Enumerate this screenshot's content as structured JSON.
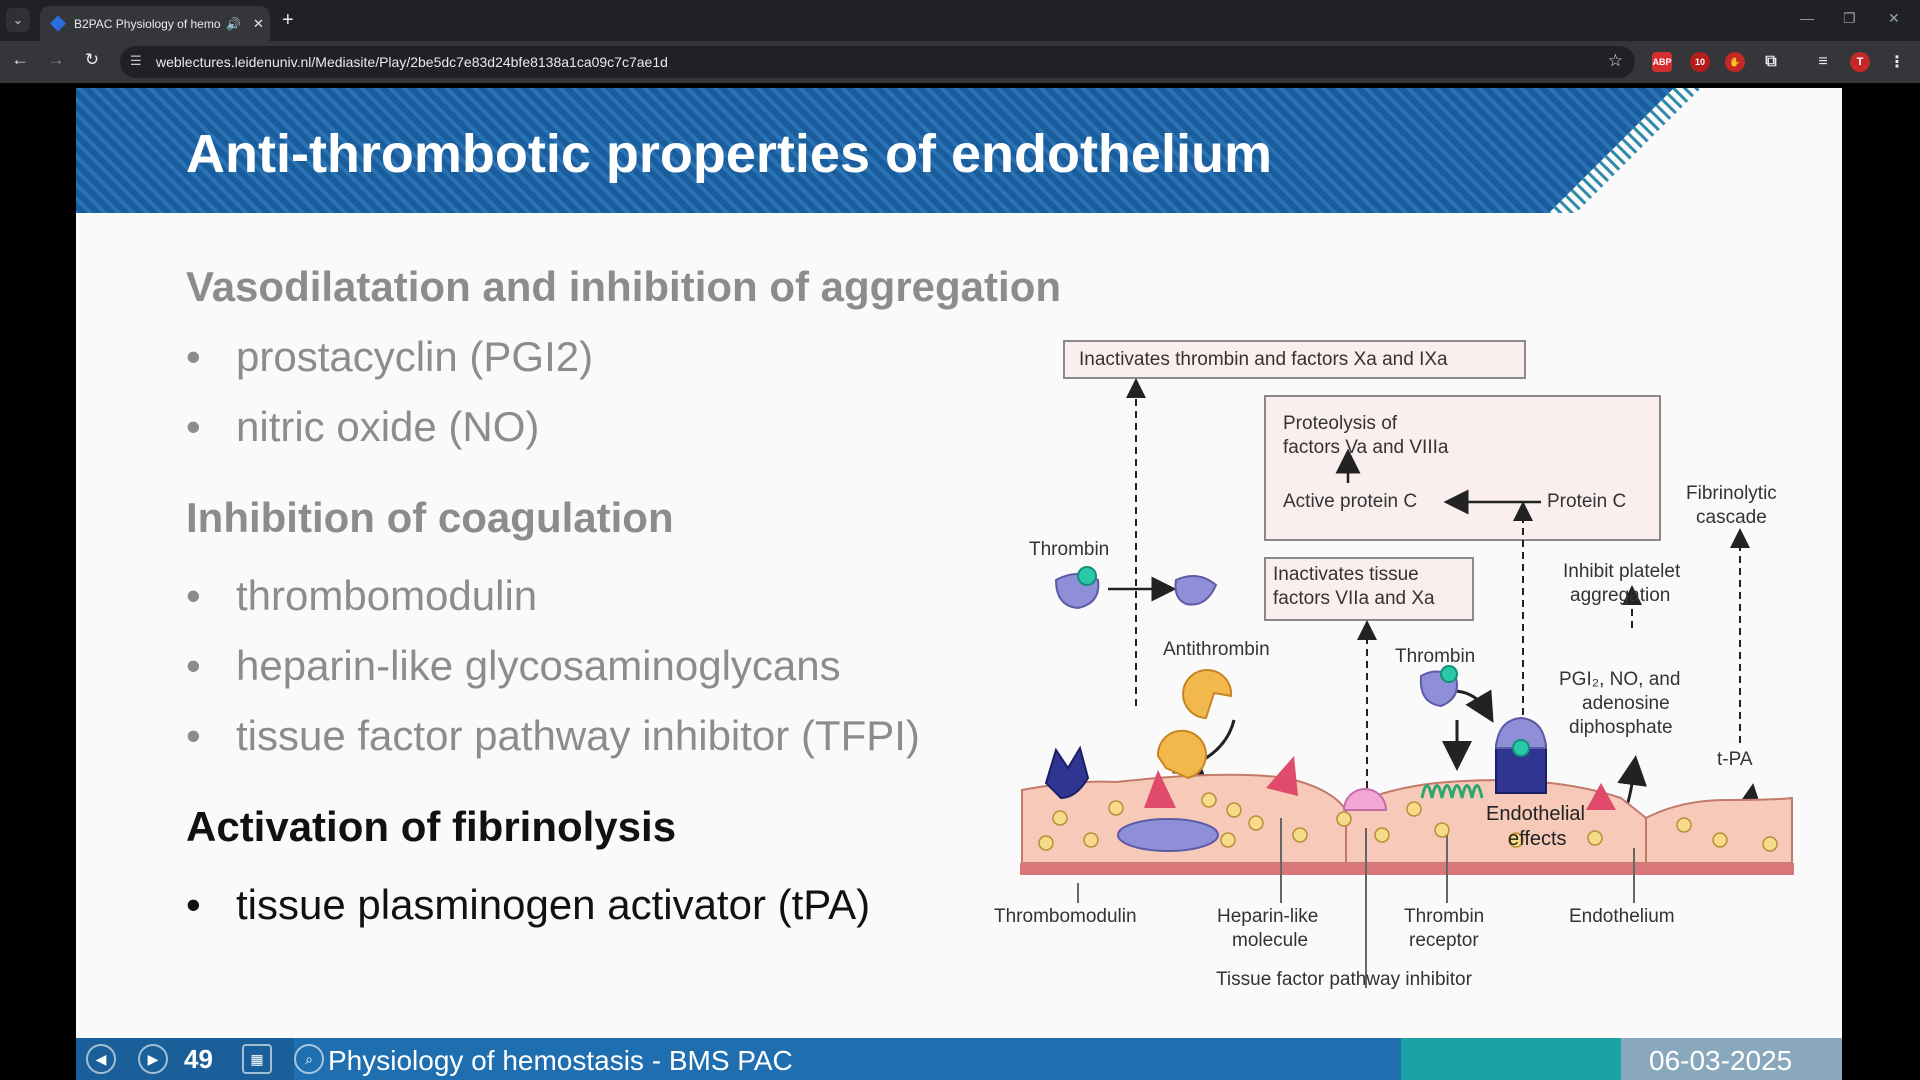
{
  "browser": {
    "tab_title": "B2PAC Physiology of hemo",
    "url": "weblectures.leidenuniv.nl/Mediasite/Play/2be5dc7e83d24bfe8138a1ca09c7c7ae1d",
    "ext_abp": "ABP",
    "ext_badge": "10",
    "profile_initial": "T"
  },
  "slide": {
    "title": "Anti-thrombotic properties of endothelium",
    "sections": [
      {
        "heading": "Vasodilatation and inhibition of aggregation",
        "items": [
          "prostacyclin (PGI2)",
          "nitric oxide (NO)"
        ]
      },
      {
        "heading": "Inhibition of coagulation",
        "items": [
          "thrombomodulin",
          "heparin-like glycosaminoglycans",
          "tissue factor pathway inhibitor (TFPI)"
        ]
      },
      {
        "heading": "Activation of fibrinolysis",
        "items": [
          "tissue plasminogen activator (tPA)"
        ]
      }
    ],
    "bullet_char": "•"
  },
  "diagram": {
    "box_top": "Inactivates thrombin and factors Xa and IXa",
    "box_proteolysis_l1": "Proteolysis of",
    "box_proteolysis_l2": "factors Va and VIIIa",
    "active_protein_c": "Active protein C",
    "protein_c": "Protein C",
    "fibrinolytic_l1": "Fibrinolytic",
    "fibrinolytic_l2": "cascade",
    "thrombin_left": "Thrombin",
    "box_tissue_l1": "Inactivates tissue",
    "box_tissue_l2": "factors VIIa and Xa",
    "inhibit_l1": "Inhibit platelet",
    "inhibit_l2": "aggregation",
    "antithrombin": "Antithrombin",
    "thrombin_right": "Thrombin",
    "pgi_l1": "PGI₂, NO, and",
    "pgi_l2": "adenosine",
    "pgi_l3": "diphosphate",
    "tpa": "t-PA",
    "endo_effects_l1": "Endothelial",
    "endo_effects_l2": "effects",
    "thrombomodulin": "Thrombomodulin",
    "heparin_l1": "Heparin-like",
    "heparin_l2": "molecule",
    "receptor_l1": "Thrombin",
    "receptor_l2": "receptor",
    "endothelium": "Endothelium",
    "tfpi": "Tissue factor pathway inhibitor"
  },
  "footer": {
    "page_number": "49",
    "label": "Physiology of hemostasis - BMS PAC",
    "date": "06-03-2025"
  }
}
